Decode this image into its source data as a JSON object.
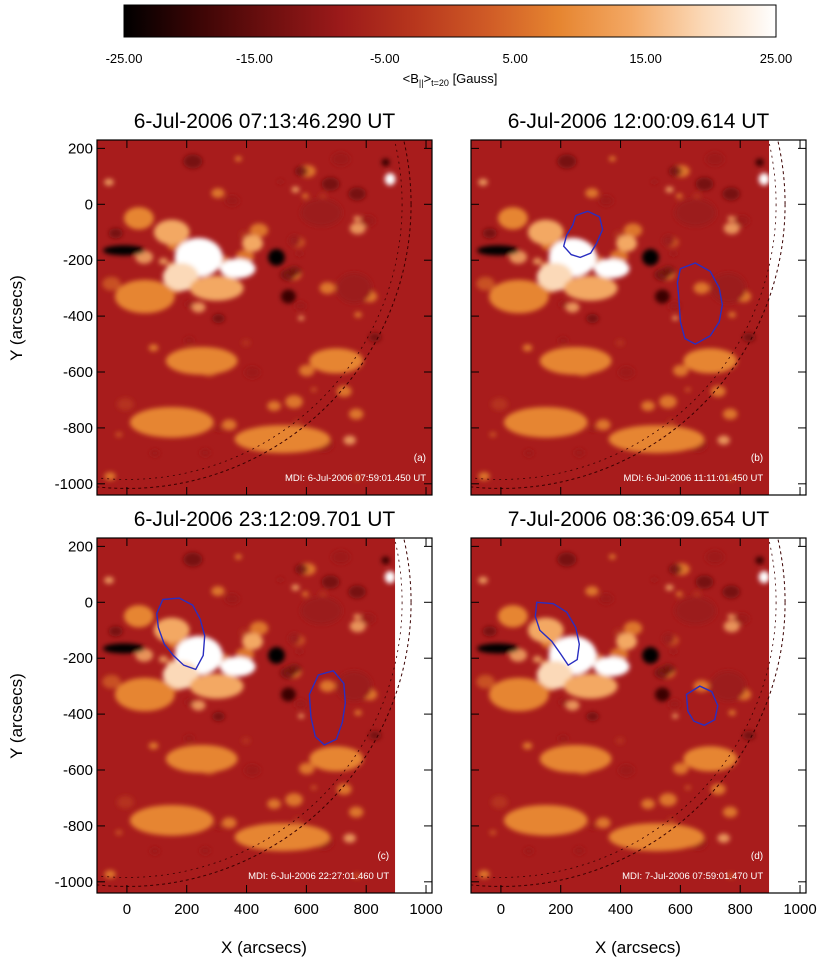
{
  "colorbar": {
    "ticks": [
      "-25.00",
      "-15.00",
      "-5.00",
      "5.00",
      "15.00",
      "25.00"
    ],
    "range": [
      -25,
      25
    ],
    "label_main": "<B",
    "label_par": "||",
    "label_mid": ">",
    "label_sub": "t=20",
    "label_unit": " [Gauss]",
    "colors": [
      "#000000",
      "#3a0505",
      "#6e0f0f",
      "#9c1a1a",
      "#b7361d",
      "#cf5a26",
      "#e68530",
      "#f3a864",
      "#fbd9b8",
      "#ffffff"
    ]
  },
  "axes": {
    "xlabel": "X (arcsecs)",
    "ylabel": "Y (arcsecs)",
    "xlim": [
      -100,
      1020
    ],
    "ylim": [
      -1040,
      230
    ],
    "xticks": [
      "0",
      "200",
      "400",
      "600",
      "800",
      "1000"
    ],
    "yticks": [
      "200",
      "0",
      "-200",
      "-400",
      "-600",
      "-800",
      "-1000"
    ]
  },
  "chart_data": {
    "type": "heatmap",
    "value_range": [
      -25,
      25
    ],
    "panels": [
      {
        "id": "a",
        "title": "6-Jul-2006 07:13:46.290 UT",
        "letter": "(a)",
        "stamp": "MDI:   6-Jul-2006 07:59:01.450 UT",
        "contours": [],
        "plot_width_frac": 1.0
      },
      {
        "id": "b",
        "title": "6-Jul-2006 12:00:09.614 UT",
        "letter": "(b)",
        "stamp": "MDI:   6-Jul-2006 11:11:01.450 UT",
        "contours": [
          [
            [
              250,
              -40
            ],
            [
              290,
              -25
            ],
            [
              330,
              -45
            ],
            [
              340,
              -90
            ],
            [
              320,
              -140
            ],
            [
              300,
              -175
            ],
            [
              265,
              -190
            ],
            [
              235,
              -180
            ],
            [
              210,
              -150
            ],
            [
              220,
              -110
            ],
            [
              240,
              -75
            ]
          ],
          [
            [
              600,
              -230
            ],
            [
              650,
              -210
            ],
            [
              700,
              -240
            ],
            [
              730,
              -300
            ],
            [
              740,
              -360
            ],
            [
              730,
              -420
            ],
            [
              700,
              -470
            ],
            [
              650,
              -500
            ],
            [
              615,
              -480
            ],
            [
              600,
              -420
            ],
            [
              595,
              -340
            ],
            [
              590,
              -280
            ]
          ]
        ],
        "plot_width_frac": 0.89
      },
      {
        "id": "c",
        "title": "6-Jul-2006 23:12:09.701 UT",
        "letter": "(c)",
        "stamp": "MDI:   6-Jul-2006 22:27:01.460 UT",
        "contours": [
          [
            [
              120,
              10
            ],
            [
              175,
              15
            ],
            [
              220,
              -10
            ],
            [
              245,
              -60
            ],
            [
              260,
              -120
            ],
            [
              255,
              -190
            ],
            [
              230,
              -240
            ],
            [
              190,
              -225
            ],
            [
              155,
              -190
            ],
            [
              125,
              -150
            ],
            [
              105,
              -90
            ],
            [
              100,
              -40
            ]
          ],
          [
            [
              640,
              -260
            ],
            [
              690,
              -245
            ],
            [
              725,
              -290
            ],
            [
              730,
              -360
            ],
            [
              720,
              -430
            ],
            [
              700,
              -490
            ],
            [
              660,
              -510
            ],
            [
              630,
              -480
            ],
            [
              615,
              -410
            ],
            [
              610,
              -330
            ]
          ]
        ],
        "plot_width_frac": 0.89
      },
      {
        "id": "d",
        "title": "7-Jul-2006 08:36:09.654 UT",
        "letter": "(d)",
        "stamp": "MDI:   7-Jul-2006 07:59:01.470 UT",
        "contours": [
          [
            [
              120,
              0
            ],
            [
              175,
              -5
            ],
            [
              220,
              -35
            ],
            [
              250,
              -90
            ],
            [
              262,
              -150
            ],
            [
              255,
              -205
            ],
            [
              225,
              -225
            ],
            [
              200,
              -185
            ],
            [
              170,
              -140
            ],
            [
              130,
              -100
            ],
            [
              115,
              -50
            ]
          ],
          [
            [
              620,
              -330
            ],
            [
              665,
              -300
            ],
            [
              705,
              -320
            ],
            [
              725,
              -370
            ],
            [
              715,
              -420
            ],
            [
              680,
              -440
            ],
            [
              645,
              -425
            ],
            [
              625,
              -390
            ]
          ]
        ],
        "plot_width_frac": 0.89
      }
    ]
  }
}
